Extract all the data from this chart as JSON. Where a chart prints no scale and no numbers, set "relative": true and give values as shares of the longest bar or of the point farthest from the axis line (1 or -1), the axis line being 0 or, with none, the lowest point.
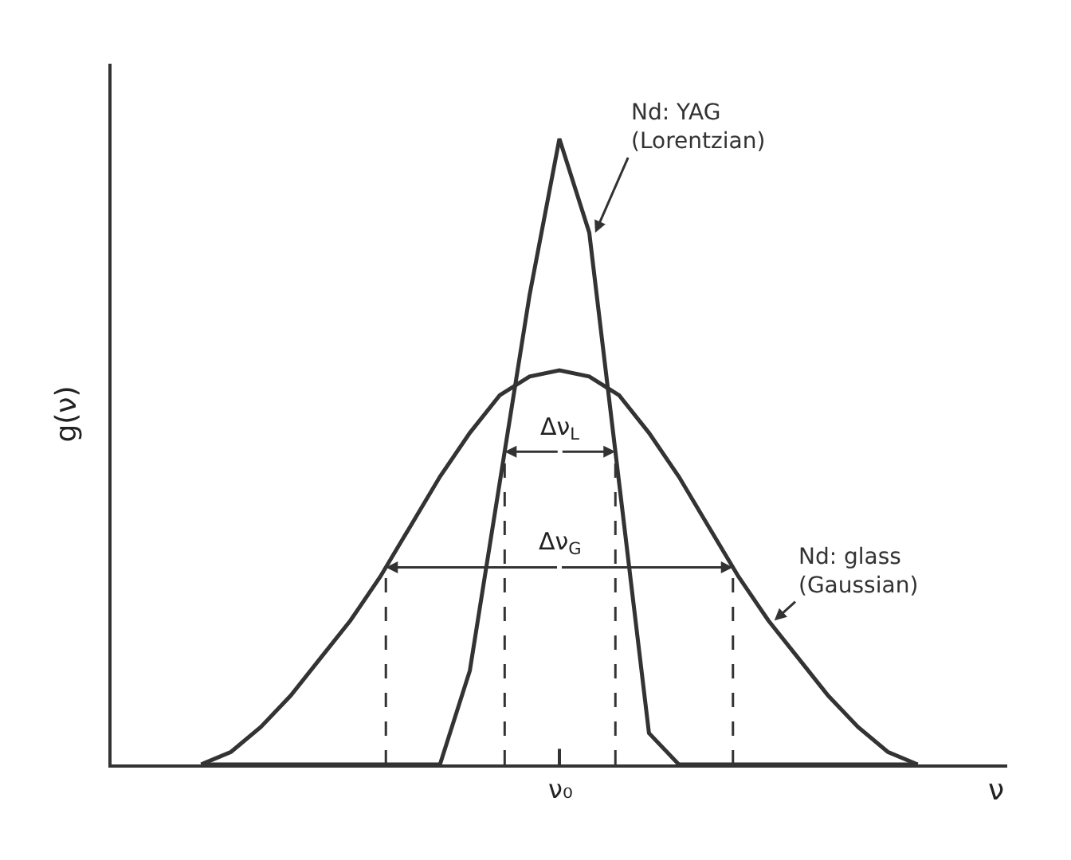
{
  "chart_data": {
    "type": "line",
    "relative": true,
    "xlabel": "ν",
    "ylabel": "g(ν)",
    "categories": [
      null,
      null,
      null,
      null,
      null,
      null,
      null,
      null,
      null,
      null,
      null,
      null,
      null,
      null,
      null,
      null,
      null,
      null,
      null,
      null,
      null,
      null,
      null,
      null,
      null
    ],
    "series": [
      {
        "name": "Nd: YAG\n(Lorentzian)",
        "color": "#333333",
        "values": [
          0,
          0,
          0,
          0,
          0,
          0,
          0,
          0,
          0,
          0.15,
          0.45,
          0.75,
          1,
          0.85,
          0.45,
          0.05,
          0,
          0,
          0,
          0,
          0,
          0,
          0,
          0,
          0
        ]
      },
      {
        "name": "Nd: glass\n(Gaussian)",
        "color": "#333333",
        "values": [
          0,
          0.02,
          0.06,
          0.11,
          0.17,
          0.23,
          0.3,
          0.38,
          0.46,
          0.53,
          0.59,
          0.62,
          0.63,
          0.62,
          0.59,
          0.53,
          0.46,
          0.38,
          0.3,
          0.23,
          0.17,
          0.11,
          0.06,
          0.02,
          0
        ]
      }
    ],
    "annotations": [
      "Δν$_{L}$",
      "Δν$_{G}$",
      "ν₀"
    ],
    "legend": false,
    "marker": "none",
    "line_style": "solid"
  }
}
